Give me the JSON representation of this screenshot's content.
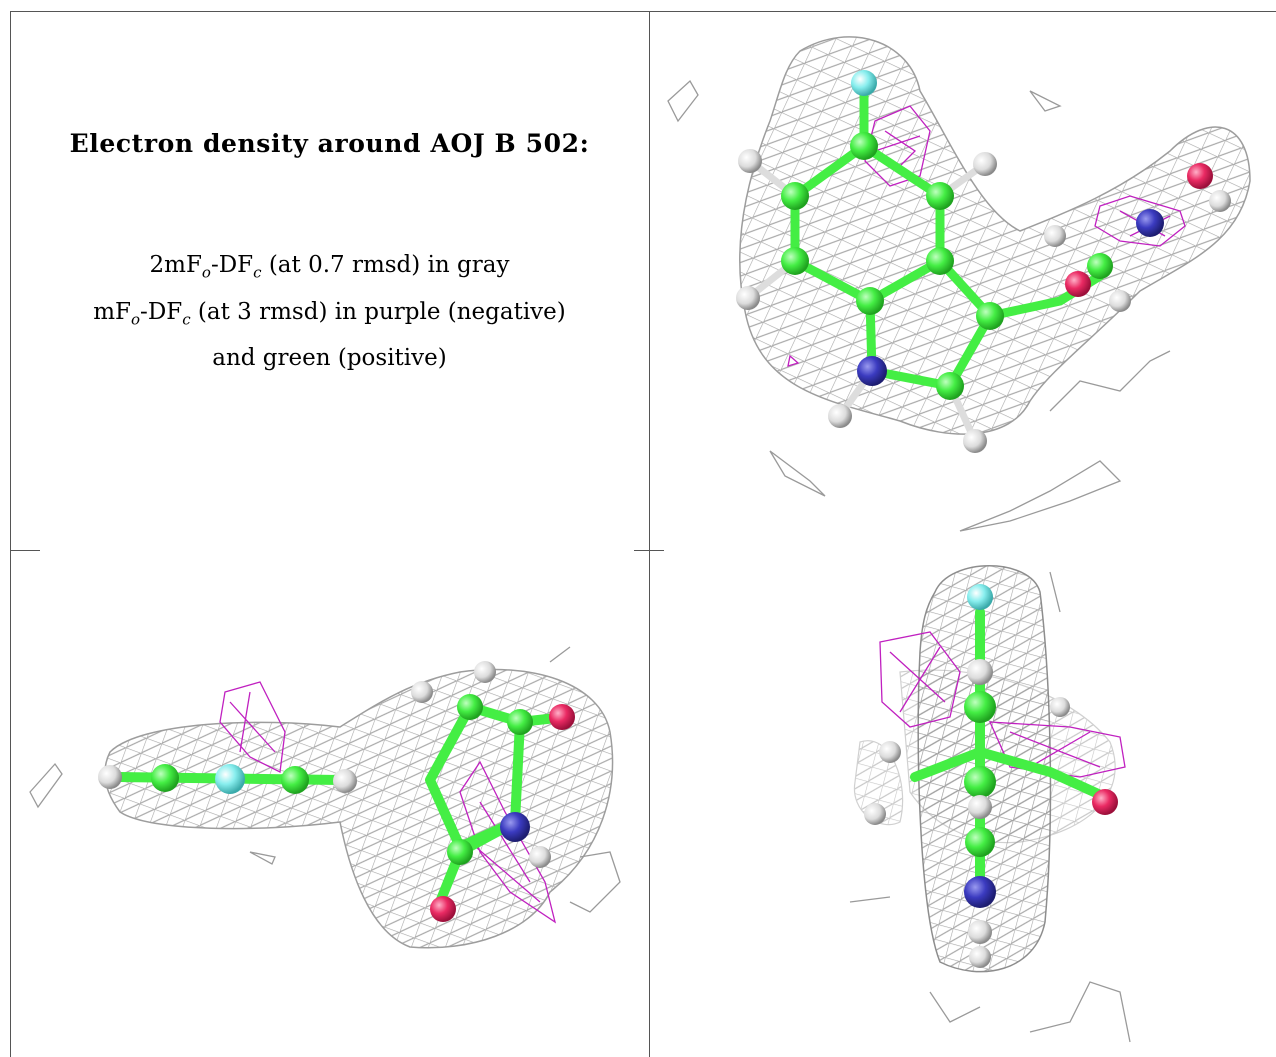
{
  "title": "Electron density around AOJ B 502:",
  "legend": {
    "line1": {
      "a": "2mF",
      "a_sub": "o",
      "b": "-DF",
      "b_sub": "c",
      "rest": " (at 0.7 rmsd) in gray"
    },
    "line2": {
      "a": "mF",
      "a_sub": "o",
      "b": "-DF",
      "b_sub": "c",
      "rest": " (at 3 rmsd) in purple (negative)"
    },
    "line3": "and green (positive)"
  },
  "views": [
    {
      "name": "top-right",
      "description_hidden": true
    },
    {
      "name": "bottom-left",
      "description_hidden": true
    },
    {
      "name": "bottom-right",
      "description_hidden": true
    }
  ],
  "colors": {
    "mesh_2fofc": "#8c8c8c",
    "mesh_fofc_negative": "#c020c0",
    "carbon": "#44ee44",
    "nitrogen": "#3535b5",
    "oxygen": "#e8245f",
    "fluorine": "#88eeee",
    "hydrogen": "#dddddd"
  }
}
